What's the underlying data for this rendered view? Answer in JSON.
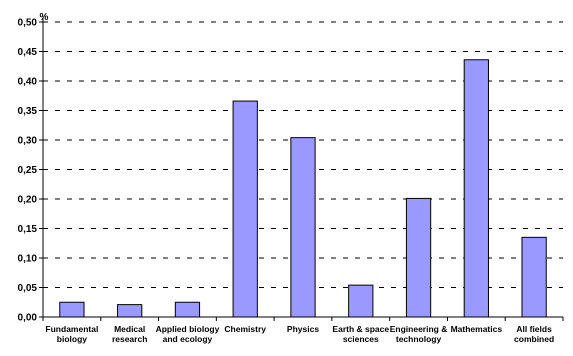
{
  "chart_data": {
    "type": "bar",
    "title": "",
    "xlabel": "",
    "ylabel": "%",
    "ylim": [
      0,
      0.5
    ],
    "y_ticks": [
      "0,00",
      "0,05",
      "0,10",
      "0,15",
      "0,20",
      "0,25",
      "0,30",
      "0,35",
      "0,40",
      "0,45",
      "0,50"
    ],
    "grid": true,
    "bar_color": "#9999ff",
    "categories": [
      [
        "Fundamental",
        "biology"
      ],
      [
        "Medical",
        "research"
      ],
      [
        "Applied biology",
        "and ecology"
      ],
      [
        "Chemistry"
      ],
      [
        "Physics"
      ],
      [
        "Earth & space",
        "sciences"
      ],
      [
        "Engineering &",
        "technology"
      ],
      [
        "Mathematics"
      ],
      [
        "All fields",
        "combined"
      ]
    ],
    "values": [
      0.025,
      0.021,
      0.025,
      0.366,
      0.304,
      0.054,
      0.201,
      0.436,
      0.135
    ]
  }
}
